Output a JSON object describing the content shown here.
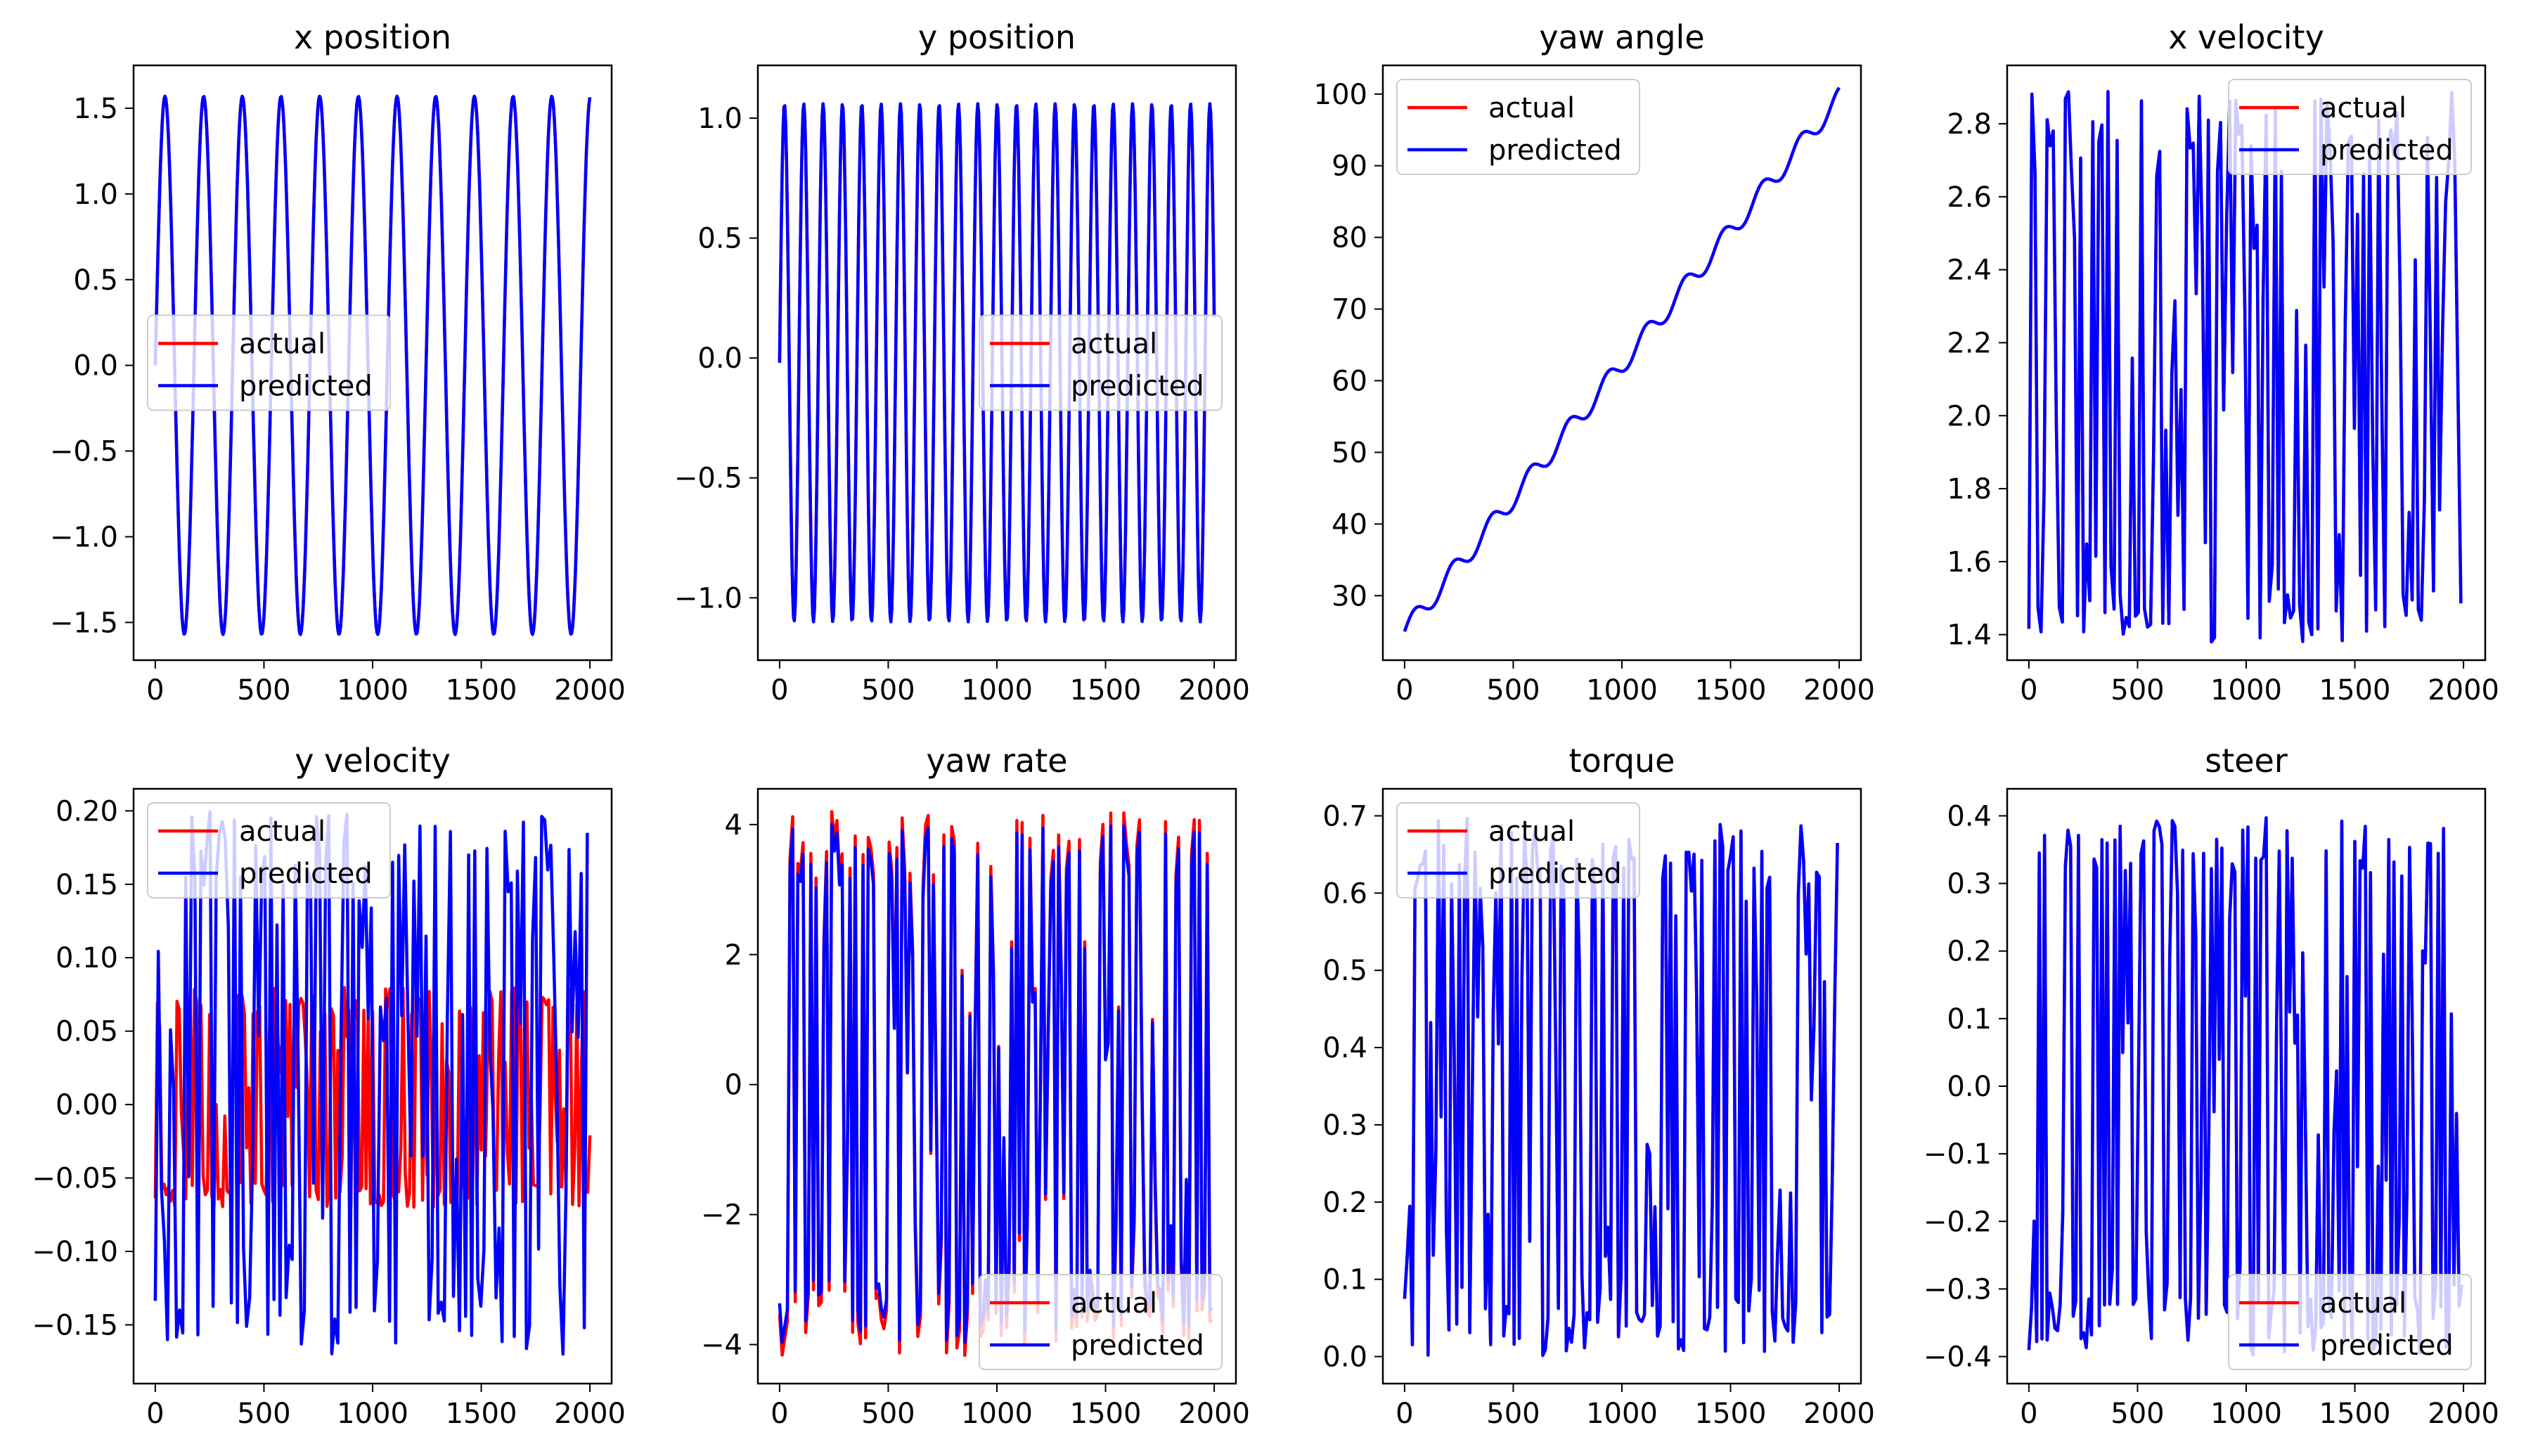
{
  "chart_data": [
    {
      "type": "line",
      "title": "x position",
      "xlim": [
        -100,
        2100
      ],
      "ylim": [
        -1.72,
        1.75
      ],
      "xticks": [
        0,
        500,
        1000,
        1500,
        2000
      ],
      "xtick_labels": [
        "0",
        "500",
        "1000",
        "1500",
        "2000"
      ],
      "yticks": [
        -1.5,
        -1.0,
        -0.5,
        0.0,
        0.5,
        1.0,
        1.5
      ],
      "ytick_labels": [
        "−1.5",
        "−1.0",
        "−0.5",
        "0.0",
        "0.5",
        "1.0",
        "1.5"
      ],
      "legend": {
        "position": "center-left",
        "entries": [
          "actual",
          "predicted"
        ]
      },
      "series": [
        {
          "name": "actual",
          "color": "#ff0000",
          "kind": "sinusoid",
          "params": {
            "amp": 1.57,
            "offset": 0.0,
            "period": 178,
            "phase": 0,
            "samples": 2000
          }
        },
        {
          "name": "predicted",
          "color": "#0000ff",
          "kind": "sinusoid",
          "params": {
            "amp": 1.57,
            "offset": 0.0,
            "period": 178,
            "phase": 0,
            "samples": 2000
          }
        }
      ]
    },
    {
      "type": "line",
      "title": "y position",
      "xlim": [
        -100,
        2100
      ],
      "ylim": [
        -1.26,
        1.22
      ],
      "xticks": [
        0,
        500,
        1000,
        1500,
        2000
      ],
      "xtick_labels": [
        "0",
        "500",
        "1000",
        "1500",
        "2000"
      ],
      "yticks": [
        -1.0,
        -0.5,
        0.0,
        0.5,
        1.0
      ],
      "ytick_labels": [
        "−1.0",
        "−0.5",
        "0.0",
        "0.5",
        "1.0"
      ],
      "legend": {
        "position": "center-right",
        "entries": [
          "actual",
          "predicted"
        ]
      },
      "series": [
        {
          "name": "actual",
          "color": "#ff0000",
          "kind": "sinusoid",
          "params": {
            "amp": 1.08,
            "offset": -0.02,
            "period": 89,
            "phase": 0,
            "samples": 2000
          }
        },
        {
          "name": "predicted",
          "color": "#0000ff",
          "kind": "sinusoid",
          "params": {
            "amp": 1.08,
            "offset": -0.02,
            "period": 89,
            "phase": 0,
            "samples": 2000
          }
        }
      ]
    },
    {
      "type": "line",
      "title": "yaw angle",
      "xlim": [
        -100,
        2100
      ],
      "ylim": [
        21,
        104
      ],
      "xticks": [
        0,
        500,
        1000,
        1500,
        2000
      ],
      "xtick_labels": [
        "0",
        "500",
        "1000",
        "1500",
        "2000"
      ],
      "yticks": [
        30,
        40,
        50,
        60,
        70,
        80,
        90,
        100
      ],
      "ytick_labels": [
        "30",
        "40",
        "50",
        "60",
        "70",
        "80",
        "90",
        "100"
      ],
      "legend": {
        "position": "upper-left",
        "entries": [
          "actual",
          "predicted"
        ]
      },
      "series": [
        {
          "name": "actual",
          "color": "#ff0000",
          "kind": "ramp",
          "params": {
            "start": 25,
            "end": 99.5,
            "wobble": 1.4,
            "period": 178,
            "samples": 2000
          }
        },
        {
          "name": "predicted",
          "color": "#0000ff",
          "kind": "ramp",
          "params": {
            "start": 25,
            "end": 99.5,
            "wobble": 1.4,
            "period": 178,
            "samples": 2000
          }
        }
      ]
    },
    {
      "type": "line",
      "title": "x velocity",
      "xlim": [
        -100,
        2100
      ],
      "ylim": [
        1.33,
        2.96
      ],
      "xticks": [
        0,
        500,
        1000,
        1500,
        2000
      ],
      "xtick_labels": [
        "0",
        "500",
        "1000",
        "1500",
        "2000"
      ],
      "yticks": [
        1.4,
        1.6,
        1.8,
        2.0,
        2.2,
        2.4,
        2.6,
        2.8
      ],
      "ytick_labels": [
        "1.4",
        "1.6",
        "1.8",
        "2.0",
        "2.2",
        "2.4",
        "2.6",
        "2.8"
      ],
      "legend": {
        "position": "upper-right",
        "entries": [
          "actual",
          "predicted"
        ]
      },
      "series": [
        {
          "name": "actual",
          "color": "#ff0000",
          "kind": "noise",
          "params": {
            "min": 1.38,
            "max": 2.9,
            "center": 1.9,
            "seed": 11,
            "step": 14
          }
        },
        {
          "name": "predicted",
          "color": "#0000ff",
          "kind": "noise",
          "params": {
            "min": 1.38,
            "max": 2.9,
            "center": 1.9,
            "seed": 11,
            "step": 14
          }
        }
      ]
    },
    {
      "type": "line",
      "title": "y velocity",
      "xlim": [
        -100,
        2100
      ],
      "ylim": [
        -0.19,
        0.215
      ],
      "xticks": [
        0,
        500,
        1000,
        1500,
        2000
      ],
      "xtick_labels": [
        "0",
        "500",
        "1000",
        "1500",
        "2000"
      ],
      "yticks": [
        -0.15,
        -0.1,
        -0.05,
        0.0,
        0.05,
        0.1,
        0.15,
        0.2
      ],
      "ytick_labels": [
        "−0.15",
        "−0.10",
        "−0.05",
        "0.00",
        "0.05",
        "0.10",
        "0.15",
        "0.20"
      ],
      "legend": {
        "position": "upper-left",
        "entries": [
          "actual",
          "predicted"
        ]
      },
      "series": [
        {
          "name": "actual",
          "color": "#ff0000",
          "kind": "noise",
          "params": {
            "min": -0.07,
            "max": 0.08,
            "center": 0.0,
            "seed": 23,
            "step": 10
          }
        },
        {
          "name": "predicted",
          "color": "#0000ff",
          "kind": "noise",
          "params": {
            "min": -0.17,
            "max": 0.2,
            "center": -0.01,
            "seed": 29,
            "step": 14
          }
        }
      ]
    },
    {
      "type": "line",
      "title": "yaw rate",
      "xlim": [
        -100,
        2100
      ],
      "ylim": [
        -4.6,
        4.55
      ],
      "xticks": [
        0,
        500,
        1000,
        1500,
        2000
      ],
      "xtick_labels": [
        "0",
        "500",
        "1000",
        "1500",
        "2000"
      ],
      "yticks": [
        -4,
        -2,
        0,
        2,
        4
      ],
      "ytick_labels": [
        "−4",
        "−2",
        "0",
        "2",
        "4"
      ],
      "legend": {
        "position": "lower-right",
        "entries": [
          "actual",
          "predicted"
        ]
      },
      "series": [
        {
          "name": "actual",
          "color": "#ff0000",
          "kind": "noise",
          "params": {
            "min": -4.2,
            "max": 4.2,
            "center": 0.0,
            "seed": 37,
            "step": 12
          }
        },
        {
          "name": "predicted",
          "color": "#0000ff",
          "kind": "noise",
          "params": {
            "min": -4.0,
            "max": 4.0,
            "center": 0.0,
            "seed": 37,
            "step": 12
          }
        }
      ]
    },
    {
      "type": "line",
      "title": "torque",
      "xlim": [
        -100,
        2100
      ],
      "ylim": [
        -0.035,
        0.735
      ],
      "xticks": [
        0,
        500,
        1000,
        1500,
        2000
      ],
      "xtick_labels": [
        "0",
        "500",
        "1000",
        "1500",
        "2000"
      ],
      "yticks": [
        0.0,
        0.1,
        0.2,
        0.3,
        0.4,
        0.5,
        0.6,
        0.7
      ],
      "ytick_labels": [
        "0.0",
        "0.1",
        "0.2",
        "0.3",
        "0.4",
        "0.5",
        "0.6",
        "0.7"
      ],
      "legend": {
        "position": "upper-left",
        "entries": [
          "actual",
          "predicted"
        ]
      },
      "series": [
        {
          "name": "actual",
          "color": "#ff0000",
          "kind": "noise",
          "params": {
            "min": 0.0,
            "max": 0.7,
            "center": 0.3,
            "seed": 41,
            "step": 12
          }
        },
        {
          "name": "predicted",
          "color": "#0000ff",
          "kind": "noise",
          "params": {
            "min": 0.0,
            "max": 0.7,
            "center": 0.3,
            "seed": 41,
            "step": 12
          }
        }
      ]
    },
    {
      "type": "line",
      "title": "steer",
      "xlim": [
        -100,
        2100
      ],
      "ylim": [
        -0.44,
        0.44
      ],
      "xticks": [
        0,
        500,
        1000,
        1500,
        2000
      ],
      "xtick_labels": [
        "0",
        "500",
        "1000",
        "1500",
        "2000"
      ],
      "yticks": [
        -0.4,
        -0.3,
        -0.2,
        -0.1,
        0.0,
        0.1,
        0.2,
        0.3,
        0.4
      ],
      "ytick_labels": [
        "−0.4",
        "−0.3",
        "−0.2",
        "−0.1",
        "0.0",
        "0.1",
        "0.2",
        "0.3",
        "0.4"
      ],
      "legend": {
        "position": "lower-right",
        "entries": [
          "actual",
          "predicted"
        ]
      },
      "series": [
        {
          "name": "actual",
          "color": "#ff0000",
          "kind": "noise",
          "params": {
            "min": -0.4,
            "max": 0.4,
            "center": 0.05,
            "seed": 53,
            "step": 12
          }
        },
        {
          "name": "predicted",
          "color": "#0000ff",
          "kind": "noise",
          "params": {
            "min": -0.4,
            "max": 0.4,
            "center": 0.05,
            "seed": 53,
            "step": 12
          }
        }
      ]
    }
  ]
}
